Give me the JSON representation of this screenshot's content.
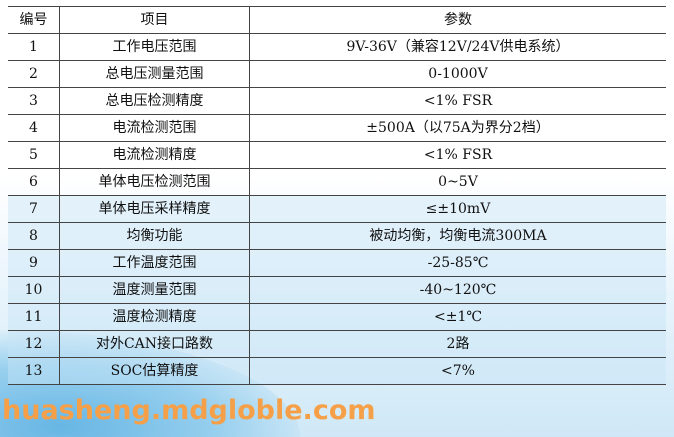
{
  "header": {
    "no": "编号",
    "item": "项目",
    "param": "参数"
  },
  "rows": [
    {
      "no": "1",
      "item": "工作电压范围",
      "param": "9V-36V（兼容12V/24V供电系统）"
    },
    {
      "no": "2",
      "item": "总电压测量范围",
      "param": "0-1000V"
    },
    {
      "no": "3",
      "item": "总电压检测精度",
      "param": "<1% FSR"
    },
    {
      "no": "4",
      "item": "电流检测范围",
      "param": "±500A（以75A为界分2档）"
    },
    {
      "no": "5",
      "item": "电流检测精度",
      "param": "<1% FSR"
    },
    {
      "no": "6",
      "item": "单体电压检测范围",
      "param": "0~5V"
    },
    {
      "no": "7",
      "item": "单体电压采样精度",
      "param": "≤±10mV"
    },
    {
      "no": "8",
      "item": "均衡功能",
      "param": "被动均衡，均衡电流300MA"
    },
    {
      "no": "9",
      "item": "工作温度范围",
      "param": "-25-85℃"
    },
    {
      "no": "10",
      "item": "温度测量范围",
      "param": "-40~120℃"
    },
    {
      "no": "11",
      "item": "温度检测精度",
      "param": "<±1℃"
    },
    {
      "no": "12",
      "item": "对外CAN接口路数",
      "param": "2路"
    },
    {
      "no": "13",
      "item": "SOC估算精度",
      "param": "<7%"
    }
  ],
  "watermark": "huasheng.mdgloble.com"
}
